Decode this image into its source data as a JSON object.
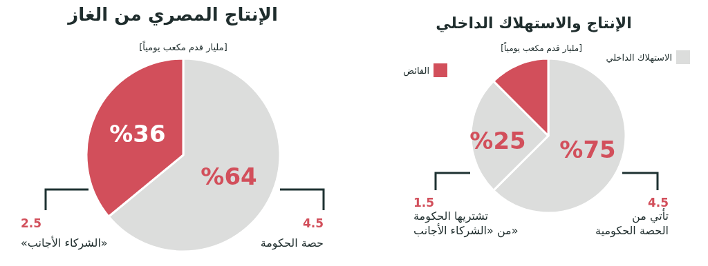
{
  "chart_data": [
    {
      "type": "pie",
      "title": "الإنتاج المصري من الغاز",
      "subtitle": "[مليار قدم مكعب يومياً]",
      "categories": [
        "حصة الحكومة",
        "«الشركاء الأجانب»"
      ],
      "values": [
        64,
        36
      ],
      "colors": [
        "#dcdddc",
        "#d24f5b"
      ],
      "value_labels": [
        "%64",
        "%36"
      ],
      "annotations": [
        "4.5",
        "2.5"
      ]
    },
    {
      "type": "pie",
      "title": "الإنتاج والاستهلاك الداخلي",
      "subtitle": "[مليار قدم مكعب يومياً]",
      "categories": [
        "تأتي من الحصة الحكومية",
        "تشتريها الحكومة من «الشركاء الأجانب»",
        "الفائض"
      ],
      "values": [
        62.5,
        25,
        12.5
      ],
      "colors": [
        "#dcdddc",
        "#dcdddc",
        "#d24f5b"
      ],
      "annotations": [
        "%75",
        "%25",
        "4.5",
        "1.5",
        "الاستهلاك الداخلي"
      ],
      "legend": "top"
    }
  ]
}
